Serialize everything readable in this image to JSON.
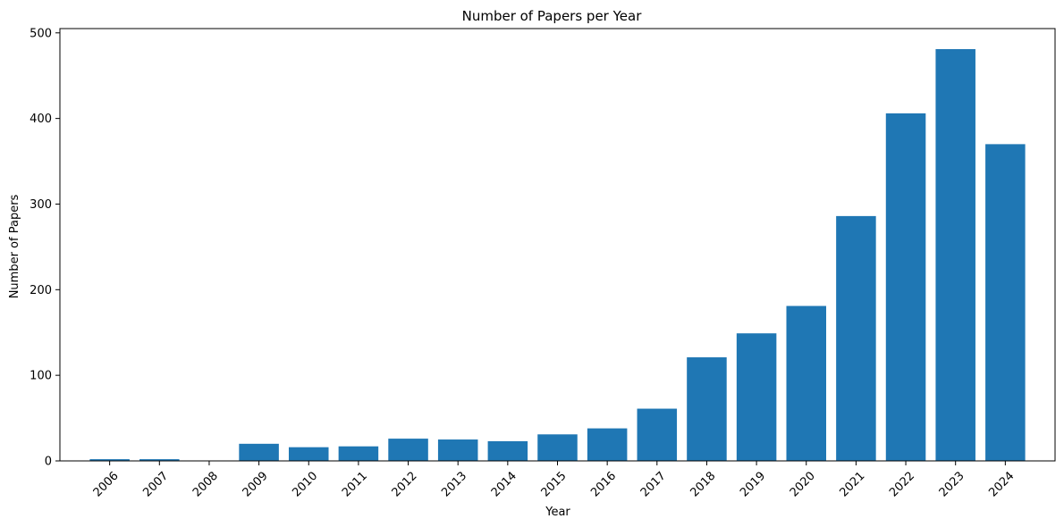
{
  "chart_data": {
    "type": "bar",
    "title": "Number of Papers per Year",
    "xlabel": "Year",
    "ylabel": "Number of Papers",
    "categories": [
      "2006",
      "2007",
      "2008",
      "2009",
      "2010",
      "2011",
      "2012",
      "2013",
      "2014",
      "2015",
      "2016",
      "2017",
      "2018",
      "2019",
      "2020",
      "2021",
      "2022",
      "2023",
      "2024"
    ],
    "values": [
      2,
      2,
      0,
      20,
      16,
      17,
      26,
      25,
      23,
      31,
      38,
      61,
      121,
      149,
      181,
      286,
      406,
      481,
      370
    ],
    "ylim": [
      0,
      505
    ],
    "yticks": [
      0,
      100,
      200,
      300,
      400,
      500
    ],
    "bar_color": "#1f77b4",
    "grid": false,
    "legend": false
  }
}
